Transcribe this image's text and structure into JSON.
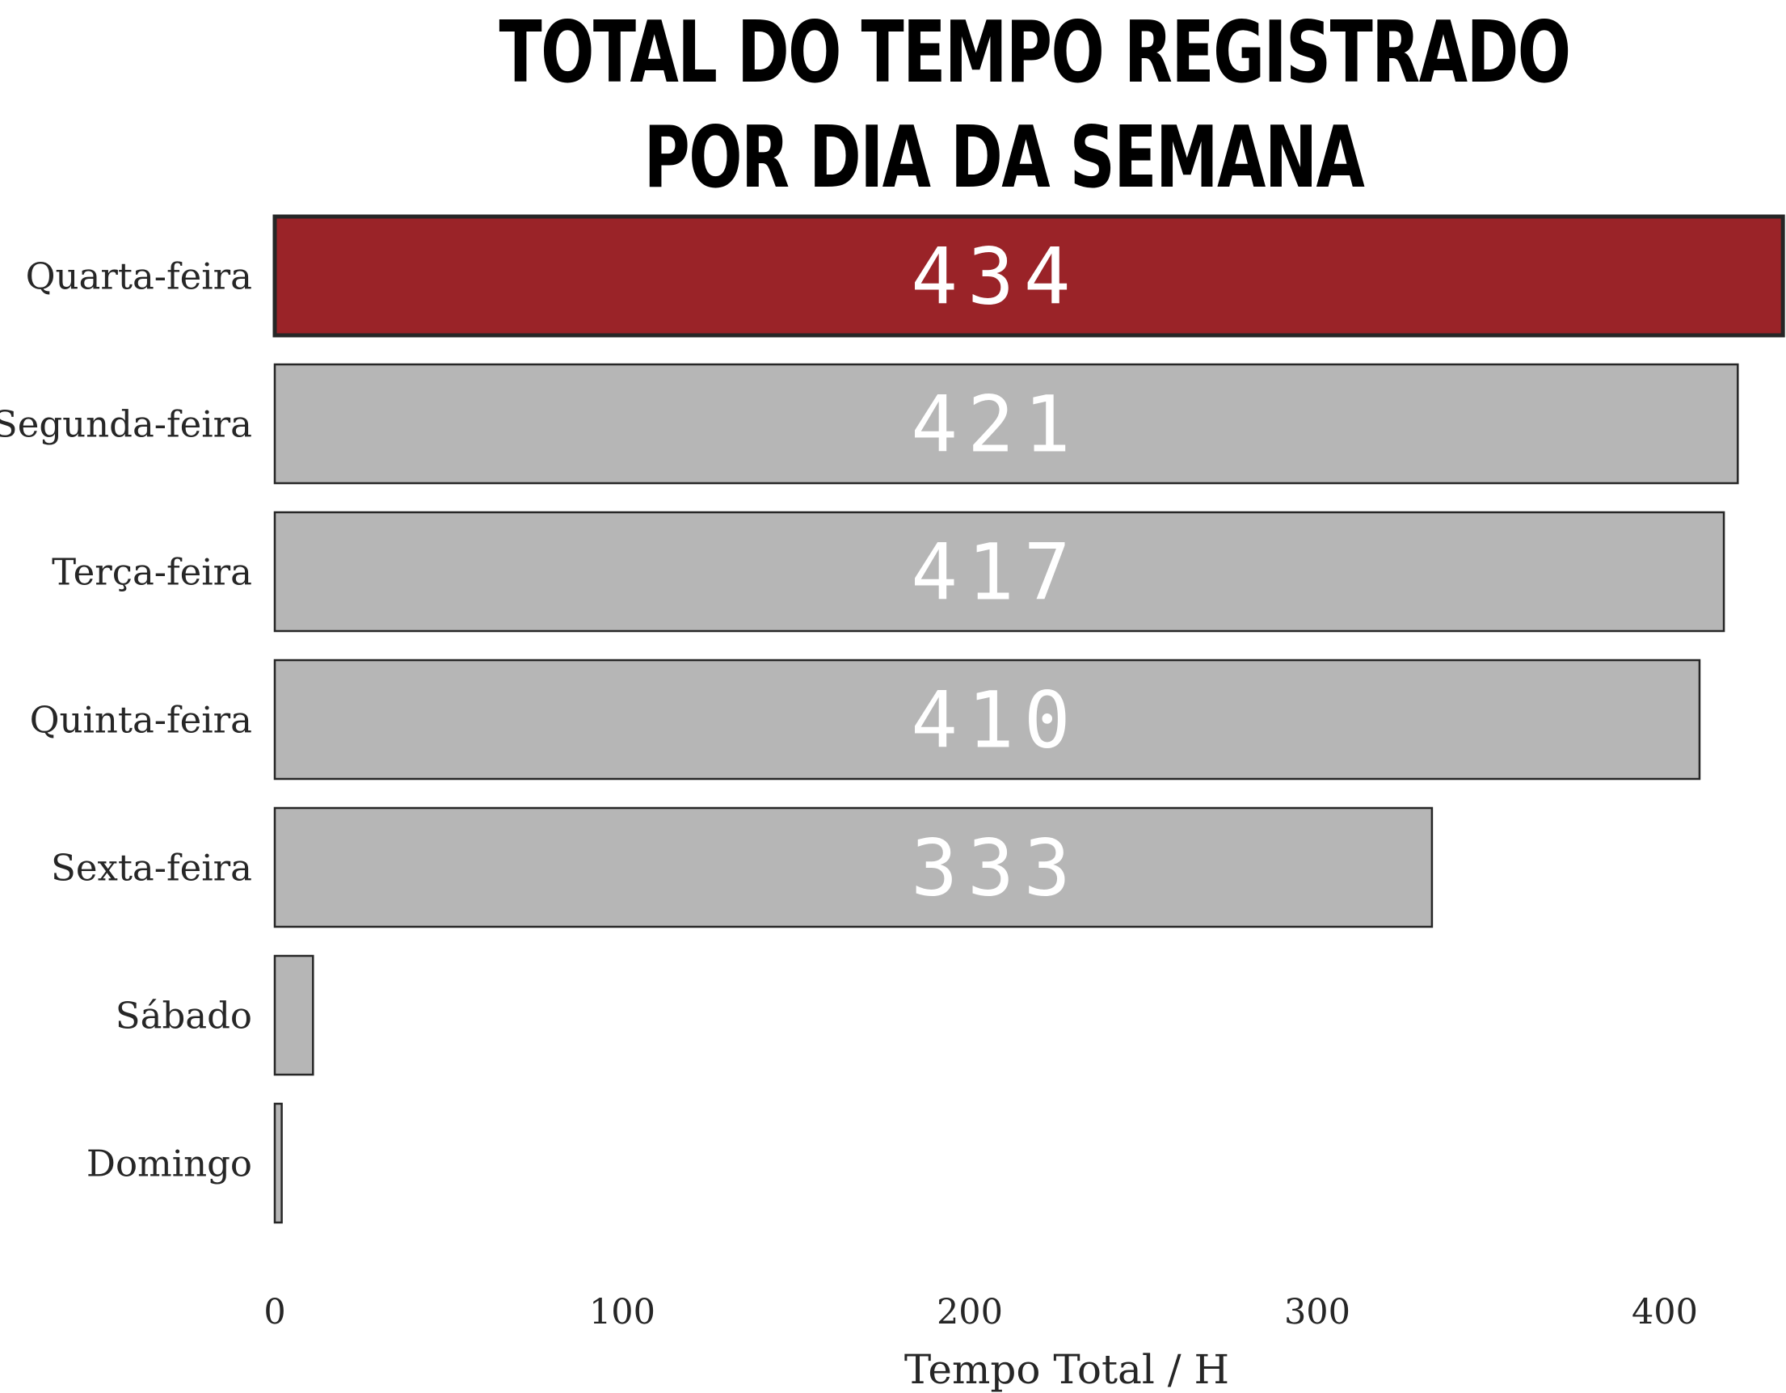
{
  "chart_data": {
    "type": "bar",
    "orientation": "horizontal",
    "title_lines": [
      "TOTAL DO TEMPO REGISTRADO",
      "POR DIA DA SEMANA"
    ],
    "xlabel": "Tempo Total / H",
    "ylabel": "",
    "categories": [
      "Quarta-feira",
      "Segunda-feira",
      "Terça-feira",
      "Quinta-feira",
      "Sexta-feira",
      "Sábado",
      "Domingo"
    ],
    "values": [
      434,
      421,
      417,
      410,
      333,
      11,
      2
    ],
    "value_labels": [
      "434",
      "421",
      "417",
      "410",
      "333",
      "",
      ""
    ],
    "xlim": [
      0,
      434
    ],
    "x_ticks": [
      0,
      100,
      200,
      300,
      400
    ],
    "x_tick_labels": [
      "0",
      "100",
      "200",
      "300",
      "400"
    ],
    "grid": false,
    "legend": "none",
    "colors": {
      "highlight": "#9a2328",
      "default": "#b6b6b6",
      "edge": "#262626",
      "value_text": "#ffffff"
    },
    "highlight_index": 0
  }
}
